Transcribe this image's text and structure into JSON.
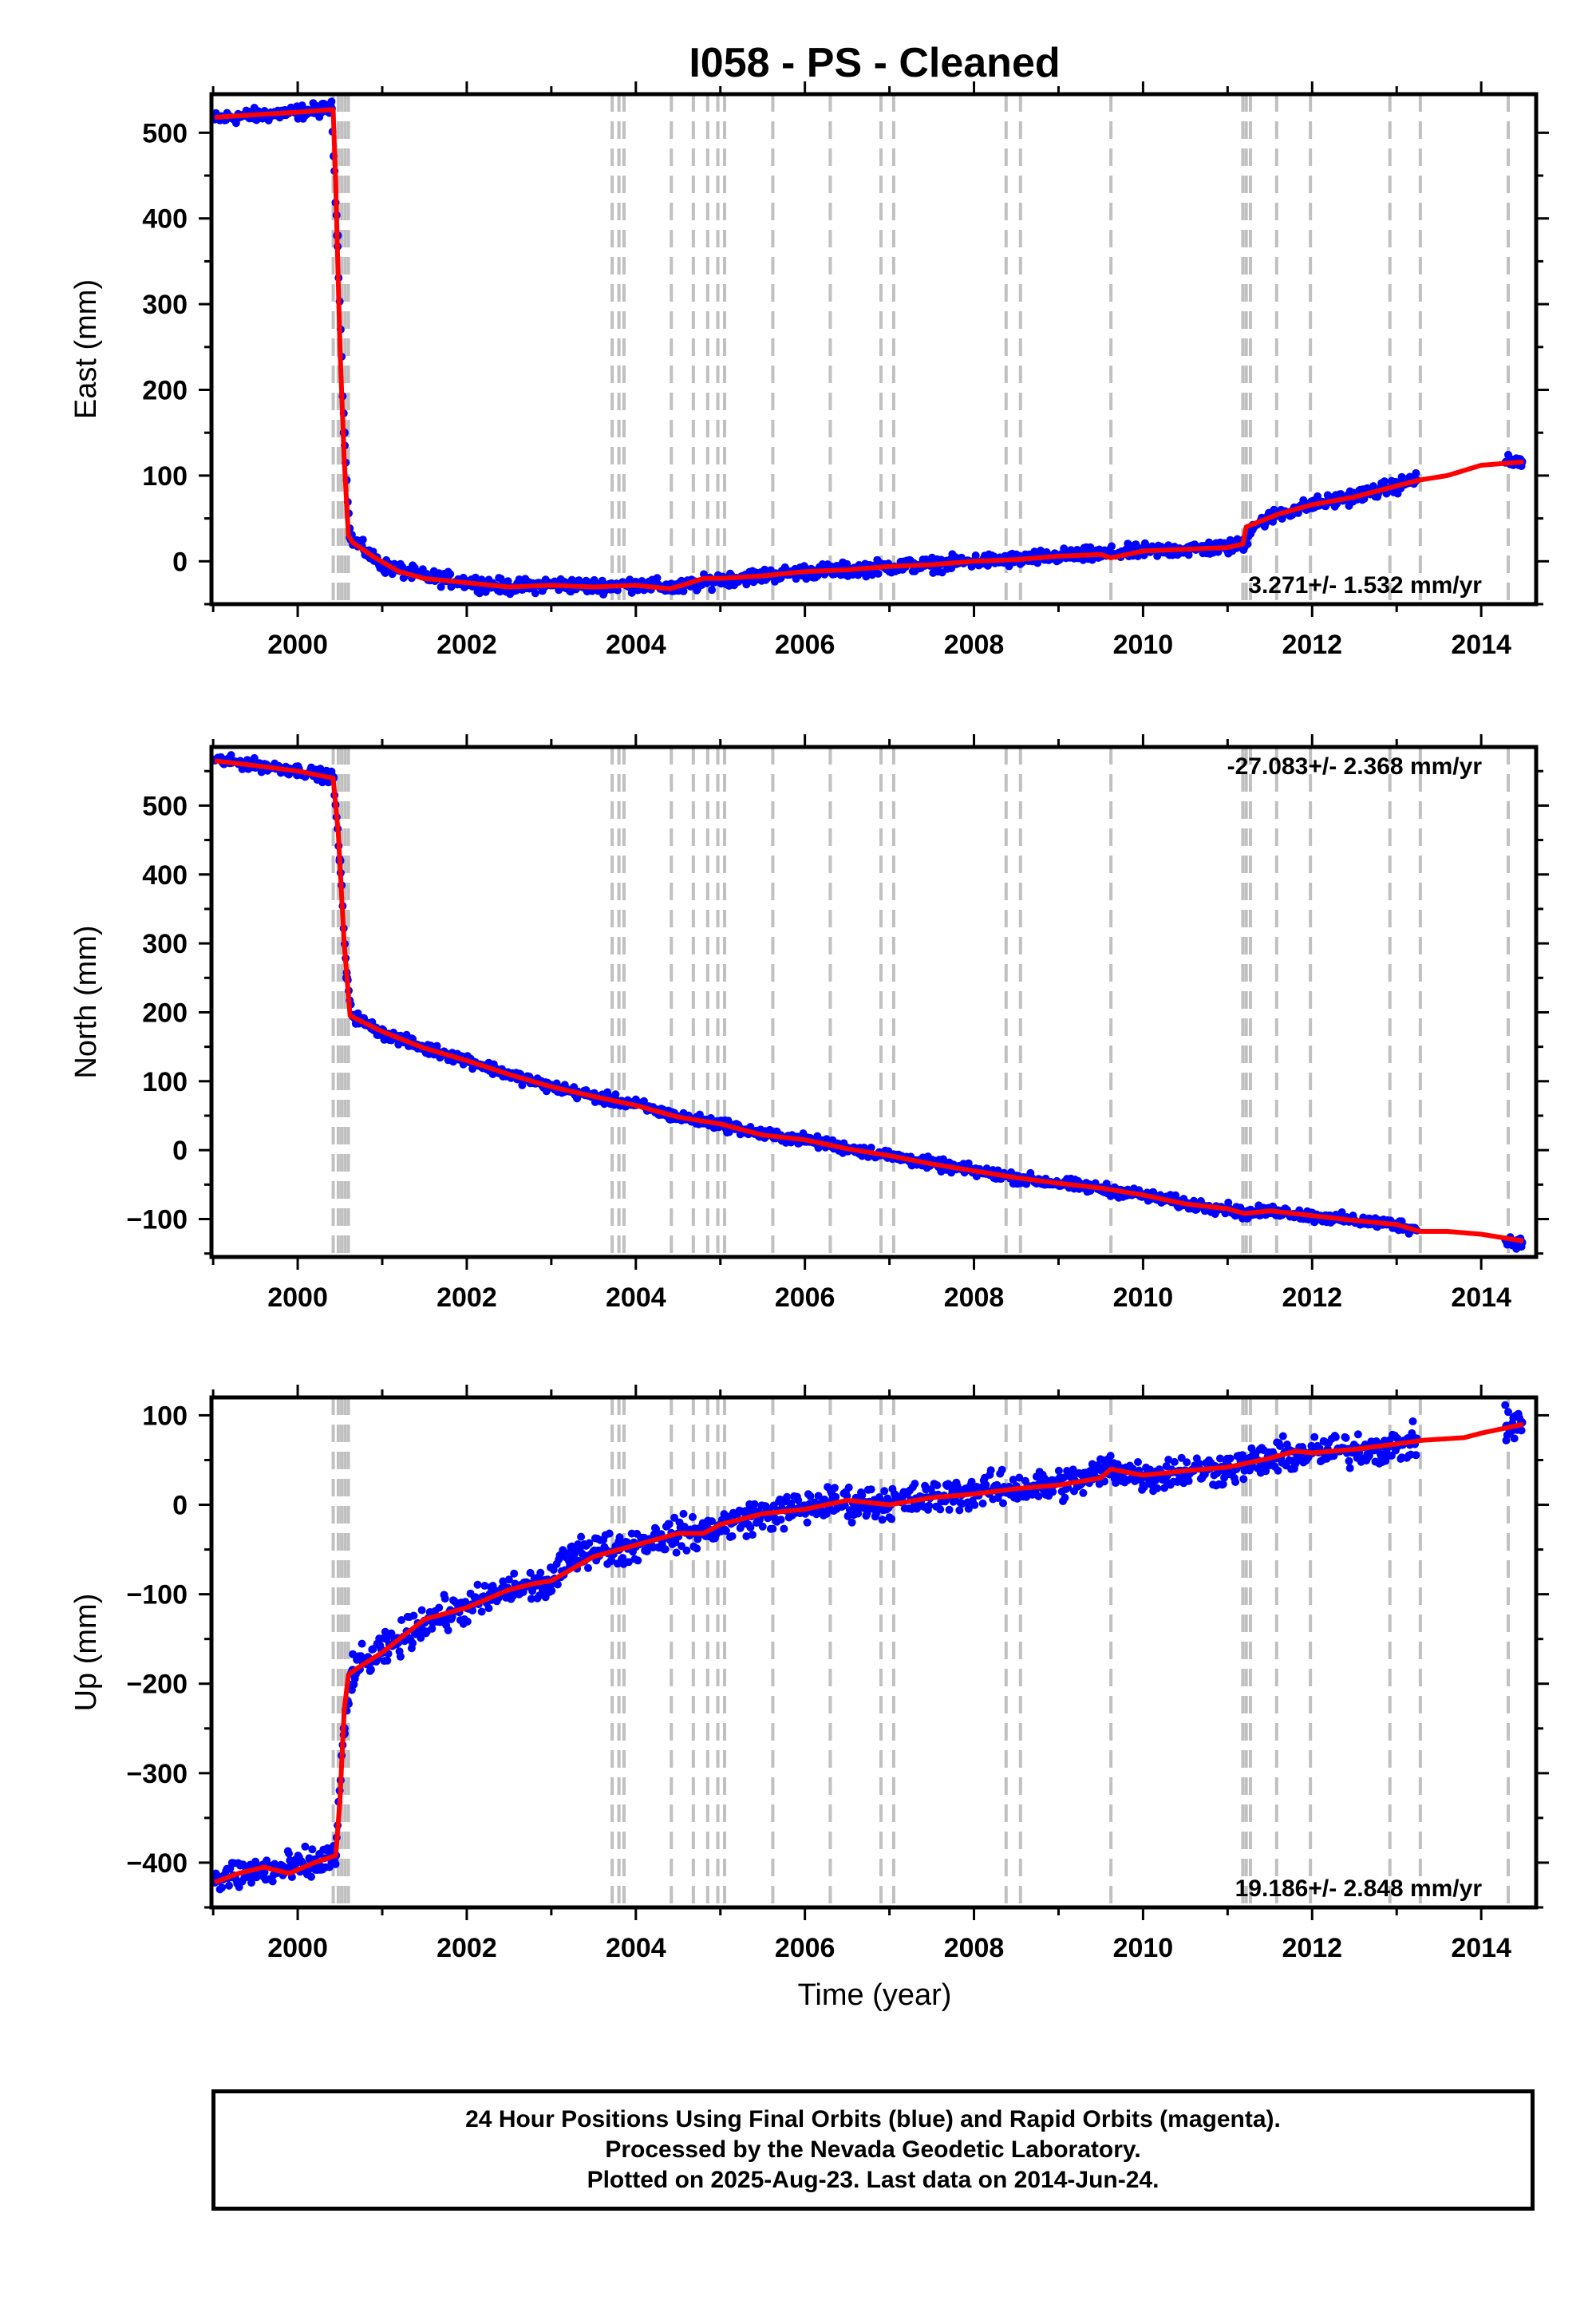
{
  "title": "I058  - PS - Cleaned",
  "xlabel": "Time (year)",
  "footer": {
    "line1": "24 Hour Positions Using Final Orbits (blue) and Rapid Orbits (magenta).",
    "line2": "Processed by the Nevada Geodetic Laboratory.",
    "line3": "Plotted on 2025-Aug-23. Last data on 2014-Jun-24."
  },
  "colors": {
    "data": "#0000ff",
    "model": "#ff0000",
    "steps": "#c0c0c0",
    "frame": "#000000"
  },
  "chart_data": [
    {
      "type": "scatter",
      "title": "I058  - PS - Cleaned",
      "ylabel": "East (mm)",
      "xlabel": "",
      "rate_label": "3.271+/- 1.532 mm/yr",
      "rate_position": "bottom-right",
      "xlim": [
        1998.98,
        2014.65
      ],
      "ylim": [
        -50,
        545
      ],
      "xticks": [
        2000,
        2002,
        2004,
        2006,
        2008,
        2010,
        2012,
        2014
      ],
      "yticks": [
        0,
        100,
        200,
        300,
        400,
        500
      ],
      "step_epochs": [
        2000.42,
        2000.48,
        2000.52,
        2000.56,
        2000.6,
        2003.72,
        2003.8,
        2003.86,
        2004.42,
        2004.68,
        2004.85,
        2004.97,
        2005.05,
        2005.62,
        2006.3,
        2006.9,
        2007.05,
        2008.38,
        2008.55,
        2009.62,
        2011.18,
        2011.22,
        2011.27,
        2011.58,
        2011.98,
        2012.92,
        2013.28,
        2014.32
      ],
      "model": {
        "x": [
          1999.02,
          1999.5,
          2000.0,
          2000.42,
          2000.45,
          2000.5,
          2000.55,
          2000.6,
          2000.65,
          2000.9,
          2001.2,
          2001.5,
          2002.0,
          2002.5,
          2003.0,
          2003.5,
          2004.0,
          2004.4,
          2004.55,
          2004.8,
          2005.0,
          2005.5,
          2006.0,
          2006.5,
          2007.0,
          2007.5,
          2008.0,
          2008.5,
          2009.0,
          2009.5,
          2009.62,
          2010.0,
          2010.5,
          2011.0,
          2011.18,
          2011.22,
          2011.6,
          2012.0,
          2012.5,
          2013.0,
          2013.28,
          2013.6,
          2014.0,
          2014.5
        ],
        "y": [
          518,
          521,
          524,
          527,
          440,
          250,
          120,
          30,
          22,
          5,
          -12,
          -20,
          -25,
          -30,
          -28,
          -30,
          -28,
          -32,
          -28,
          -20,
          -20,
          -17,
          -12,
          -10,
          -6,
          -4,
          0,
          2,
          6,
          8,
          4,
          12,
          14,
          16,
          20,
          40,
          55,
          66,
          75,
          88,
          95,
          100,
          112,
          116
        ]
      },
      "data": {
        "x": [
          1999.02,
          1999.3,
          1999.6,
          2000.0,
          2000.4,
          2000.47,
          2000.55,
          2000.62,
          2000.8,
          2001.0,
          2001.5,
          2002.0,
          2002.5,
          2003.0,
          2003.5,
          2004.0,
          2004.5,
          2005.0,
          2005.5,
          2006.0,
          2006.5,
          2007.0,
          2007.5,
          2008.0,
          2008.5,
          2009.0,
          2009.5,
          2010.0,
          2010.5,
          2011.0,
          2011.2,
          2011.3,
          2011.6,
          2012.0,
          2012.5,
          2013.0,
          2013.2,
          2014.3,
          2014.48
        ],
        "y": [
          516,
          519,
          521,
          524,
          528,
          380,
          150,
          28,
          12,
          -5,
          -18,
          -24,
          -30,
          -27,
          -29,
          -27,
          -31,
          -21,
          -17,
          -12,
          -10,
          -6,
          -4,
          0,
          2,
          6,
          8,
          12,
          14,
          16,
          20,
          42,
          55,
          66,
          76,
          88,
          96,
          116,
          116
        ]
      }
    },
    {
      "type": "scatter",
      "title": "",
      "ylabel": "North (mm)",
      "xlabel": "",
      "rate_label": "-27.083+/- 2.368 mm/yr",
      "rate_position": "top-right",
      "xlim": [
        1998.98,
        2014.65
      ],
      "ylim": [
        -155,
        585
      ],
      "xticks": [
        2000,
        2002,
        2004,
        2006,
        2008,
        2010,
        2012,
        2014
      ],
      "yticks": [
        -100,
        0,
        100,
        200,
        300,
        400,
        500
      ],
      "step_epochs": [
        2000.42,
        2000.48,
        2000.52,
        2000.56,
        2000.6,
        2003.72,
        2003.8,
        2003.86,
        2004.42,
        2004.68,
        2004.85,
        2004.97,
        2005.05,
        2005.62,
        2006.3,
        2006.9,
        2007.05,
        2008.38,
        2008.55,
        2009.62,
        2011.18,
        2011.22,
        2011.27,
        2011.58,
        2011.98,
        2012.92,
        2013.28,
        2014.32
      ],
      "model": {
        "x": [
          1999.02,
          1999.5,
          2000.0,
          2000.42,
          2000.48,
          2000.55,
          2000.62,
          2001.0,
          2001.5,
          2002.0,
          2002.5,
          2003.0,
          2003.5,
          2004.0,
          2004.5,
          2005.0,
          2005.5,
          2006.0,
          2006.5,
          2007.0,
          2007.5,
          2008.0,
          2008.5,
          2009.0,
          2009.5,
          2010.0,
          2010.5,
          2011.0,
          2011.2,
          2011.5,
          2012.0,
          2012.5,
          2013.0,
          2013.28,
          2013.6,
          2014.0,
          2014.5
        ],
        "y": [
          565,
          558,
          550,
          540,
          460,
          300,
          195,
          172,
          148,
          130,
          110,
          92,
          78,
          65,
          48,
          38,
          22,
          15,
          2,
          -8,
          -20,
          -30,
          -40,
          -48,
          -55,
          -65,
          -78,
          -85,
          -92,
          -88,
          -95,
          -102,
          -108,
          -118,
          -118,
          -122,
          -132
        ]
      },
      "data": {
        "x": [
          1999.02,
          1999.5,
          2000.0,
          2000.42,
          2000.5,
          2000.58,
          2000.65,
          2001.0,
          2001.5,
          2002.0,
          2002.5,
          2003.0,
          2003.5,
          2004.0,
          2004.5,
          2005.0,
          2005.5,
          2006.0,
          2006.5,
          2007.0,
          2007.5,
          2008.0,
          2008.5,
          2009.0,
          2009.5,
          2010.0,
          2010.5,
          2011.0,
          2011.2,
          2011.6,
          2012.0,
          2012.5,
          2013.0,
          2013.2,
          2014.3,
          2014.48
        ],
        "y": [
          566,
          559,
          551,
          541,
          420,
          250,
          195,
          170,
          148,
          131,
          110,
          92,
          78,
          66,
          48,
          38,
          23,
          15,
          3,
          -8,
          -20,
          -30,
          -40,
          -48,
          -56,
          -65,
          -78,
          -85,
          -92,
          -88,
          -96,
          -102,
          -108,
          -114,
          -132,
          -134
        ]
      }
    },
    {
      "type": "scatter",
      "title": "",
      "ylabel": "Up (mm)",
      "xlabel": "Time (year)",
      "rate_label": "19.186+/- 2.848 mm/yr",
      "rate_position": "bottom-right",
      "xlim": [
        1998.98,
        2014.65
      ],
      "ylim": [
        -450,
        120
      ],
      "xticks": [
        2000,
        2002,
        2004,
        2006,
        2008,
        2010,
        2012,
        2014
      ],
      "yticks": [
        -400,
        -300,
        -200,
        -100,
        0,
        100
      ],
      "step_epochs": [
        2000.42,
        2000.48,
        2000.52,
        2000.56,
        2000.6,
        2003.72,
        2003.8,
        2003.86,
        2004.42,
        2004.68,
        2004.85,
        2004.97,
        2005.05,
        2005.62,
        2006.3,
        2006.9,
        2007.05,
        2008.38,
        2008.55,
        2009.62,
        2011.18,
        2011.22,
        2011.27,
        2011.58,
        2011.98,
        2012.92,
        2013.28,
        2014.32
      ],
      "model": {
        "x": [
          1999.02,
          1999.3,
          1999.6,
          1999.9,
          2000.2,
          2000.45,
          2000.5,
          2000.55,
          2000.6,
          2000.7,
          2001.0,
          2001.5,
          2002.0,
          2002.5,
          2002.8,
          2003.0,
          2003.5,
          2004.0,
          2004.5,
          2004.8,
          2005.0,
          2005.5,
          2006.0,
          2006.5,
          2007.0,
          2007.5,
          2008.0,
          2008.5,
          2009.0,
          2009.5,
          2009.62,
          2010.0,
          2010.5,
          2011.0,
          2011.5,
          2011.8,
          2012.0,
          2012.5,
          2013.0,
          2013.3,
          2013.8,
          2014.0,
          2014.5
        ],
        "y": [
          -422,
          -412,
          -405,
          -412,
          -400,
          -392,
          -330,
          -230,
          -190,
          -183,
          -165,
          -128,
          -115,
          -95,
          -88,
          -85,
          -58,
          -45,
          -32,
          -32,
          -22,
          -10,
          -5,
          5,
          0,
          8,
          12,
          18,
          22,
          30,
          40,
          33,
          38,
          42,
          52,
          60,
          58,
          62,
          68,
          72,
          75,
          80,
          90
        ]
      },
      "data": {
        "x": [
          1999.02,
          1999.4,
          1999.8,
          2000.2,
          2000.45,
          2000.55,
          2000.65,
          2001.0,
          2001.5,
          2002.0,
          2002.5,
          2003.0,
          2003.3,
          2003.8,
          2004.3,
          2004.8,
          2005.3,
          2005.8,
          2006.3,
          2006.8,
          2007.3,
          2007.8,
          2008.3,
          2008.8,
          2009.3,
          2009.62,
          2010.0,
          2010.5,
          2011.0,
          2011.5,
          2012.0,
          2012.5,
          2013.0,
          2013.2,
          2014.3,
          2014.48
        ],
        "y": [
          -420,
          -410,
          -408,
          -402,
          -392,
          -250,
          -185,
          -165,
          -130,
          -115,
          -95,
          -88,
          -50,
          -50,
          -35,
          -30,
          -15,
          -7,
          2,
          2,
          5,
          12,
          18,
          20,
          28,
          42,
          32,
          38,
          40,
          52,
          58,
          62,
          65,
          70,
          88,
          92
        ]
      }
    }
  ]
}
